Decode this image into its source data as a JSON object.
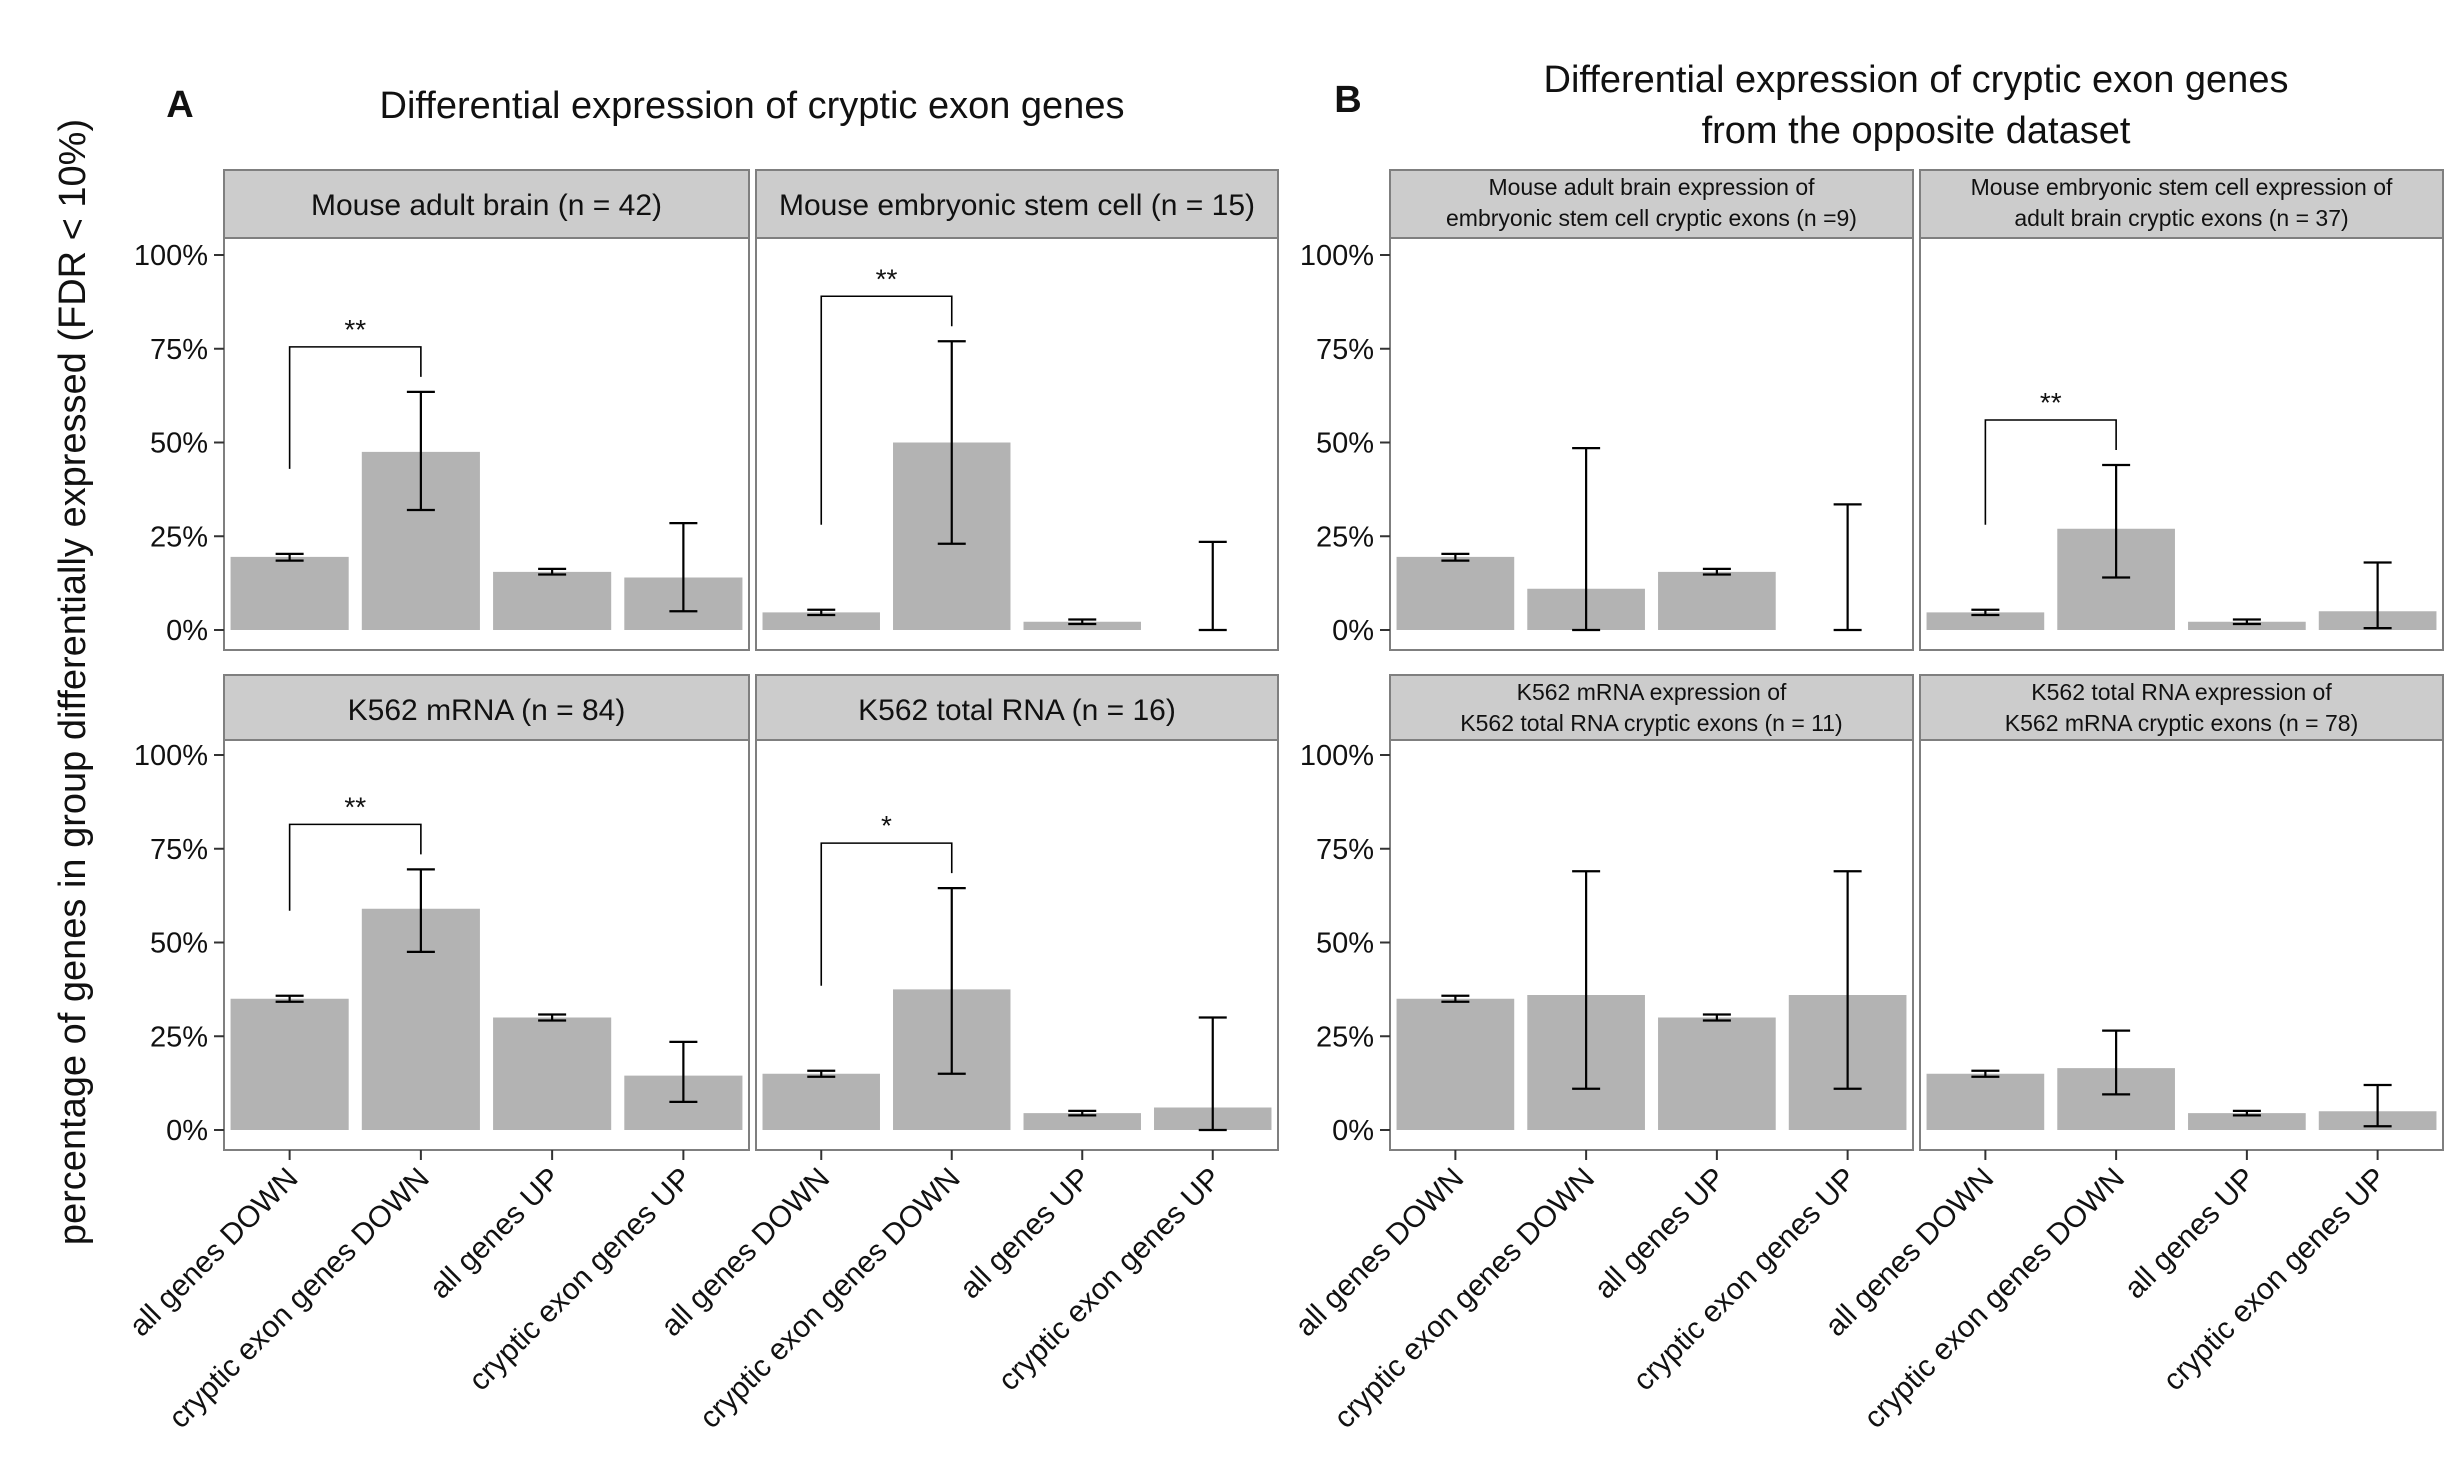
{
  "y_axis_label": "percentage of genes in group differentially expressed (FDR < 10%)",
  "panel_letters": [
    "A",
    "B"
  ],
  "section_titles": {
    "A": [
      "Differential expression of cryptic exon genes"
    ],
    "B": [
      "Differential expression of cryptic exon genes",
      "from the opposite dataset"
    ]
  },
  "colors": {
    "bar": "#b3b3b3",
    "strip": "#cccccc",
    "frame": "#7f7f7f",
    "text": "#111111"
  },
  "chart_data": {
    "type": "bar",
    "categories": [
      "all genes DOWN",
      "cryptic exon genes DOWN",
      "all genes UP",
      "cryptic exon genes UP"
    ],
    "y_ticks": [
      "0%",
      "25%",
      "50%",
      "75%",
      "100%"
    ],
    "ylim": [
      0,
      100
    ],
    "grid": false,
    "panels": [
      {
        "title": [
          "Mouse adult brain (n = 42)"
        ],
        "values": [
          19.5,
          47.5,
          15.5,
          14
        ],
        "err_low": [
          18.5,
          32,
          14.8,
          5
        ],
        "err_high": [
          20.3,
          63.5,
          16.3,
          28.5
        ],
        "significance": "**"
      },
      {
        "title": [
          "Mouse embryonic stem cell (n = 15)"
        ],
        "values": [
          4.7,
          50,
          2.2,
          0
        ],
        "err_low": [
          4.0,
          23,
          1.6,
          0
        ],
        "err_high": [
          5.4,
          77,
          2.8,
          23.5
        ],
        "significance": "**"
      },
      {
        "title": [
          "Mouse adult brain expression of",
          "embryonic stem cell cryptic exons (n =9)"
        ],
        "values": [
          19.5,
          11,
          15.5,
          0
        ],
        "err_low": [
          18.5,
          0,
          14.8,
          0
        ],
        "err_high": [
          20.3,
          48.5,
          16.3,
          33.5
        ],
        "significance": ""
      },
      {
        "title": [
          "Mouse embryonic stem cell expression of",
          "adult brain cryptic exons (n = 37)"
        ],
        "values": [
          4.7,
          27,
          2.2,
          5
        ],
        "err_low": [
          4.0,
          14,
          1.6,
          0.5
        ],
        "err_high": [
          5.4,
          44,
          2.8,
          18
        ],
        "significance": "**"
      },
      {
        "title": [
          "K562 mRNA (n = 84)"
        ],
        "values": [
          35,
          59,
          30,
          14.5
        ],
        "err_low": [
          34.2,
          47.5,
          29.2,
          7.5
        ],
        "err_high": [
          35.8,
          69.5,
          30.8,
          23.5
        ],
        "significance": "**"
      },
      {
        "title": [
          "K562 total RNA (n = 16)"
        ],
        "values": [
          15,
          37.5,
          4.5,
          6
        ],
        "err_low": [
          14.2,
          15,
          3.9,
          0
        ],
        "err_high": [
          15.8,
          64.5,
          5.1,
          30
        ],
        "significance": "*"
      },
      {
        "title": [
          "K562 mRNA expression of",
          "K562 total RNA cryptic exons (n = 11)"
        ],
        "values": [
          35,
          36,
          30,
          36
        ],
        "err_low": [
          34.2,
          11,
          29.2,
          11
        ],
        "err_high": [
          35.8,
          69,
          30.8,
          69
        ],
        "significance": ""
      },
      {
        "title": [
          "K562 total RNA expression of",
          "K562 mRNA cryptic exons (n = 78)"
        ],
        "values": [
          15,
          16.5,
          4.5,
          5
        ],
        "err_low": [
          14.2,
          9.5,
          3.9,
          1
        ],
        "err_high": [
          15.8,
          26.5,
          5.1,
          12
        ],
        "significance": ""
      }
    ]
  }
}
